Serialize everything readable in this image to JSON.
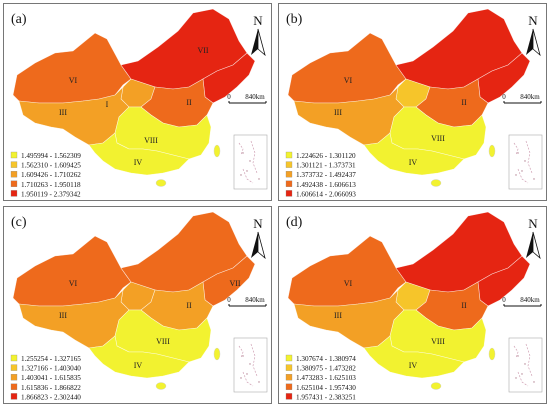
{
  "panels": [
    {
      "label": "(a)",
      "legend": [
        "1.495994 - 1.562309",
        "1.562310 - 1.609425",
        "1.609426 - 1.710262",
        "1.710263 - 1.950118",
        "1.950119 - 2.379342"
      ],
      "region_classes": {
        "I": 4,
        "II": 3,
        "III": 2,
        "IV": 0,
        "V": 2,
        "VI": 3,
        "VII": 4,
        "VIII": 0
      },
      "region_labels": [
        "I",
        "II",
        "III",
        "IV",
        "VI",
        "VII",
        "VIII"
      ]
    },
    {
      "label": "(b)",
      "legend": [
        "1.224626 - 1.301120",
        "1.301121 - 1.373731",
        "1.373732 - 1.492437",
        "1.492438 - 1.606613",
        "1.606614 - 2.066093"
      ],
      "region_classes": {
        "I": 4,
        "II": 3,
        "III": 2,
        "IV": 0,
        "V": 1,
        "VI": 3,
        "VII": 4,
        "VIII": 0
      },
      "region_labels": [
        "II",
        "III",
        "IV",
        "VI",
        "VIII"
      ]
    },
    {
      "label": "(c)",
      "legend": [
        "1.255254 - 1.327165",
        "1.327166 - 1.403040",
        "1.403041 - 1.615835",
        "1.615836 - 1.866822",
        "1.866823 - 2.302440"
      ],
      "region_classes": {
        "I": 3,
        "II": 2,
        "III": 2,
        "IV": 0,
        "V": 2,
        "VI": 3,
        "VII": 3,
        "VIII": 0
      },
      "region_labels": [
        "II",
        "III",
        "IV",
        "VI",
        "VII",
        "VIII"
      ]
    },
    {
      "label": "(d)",
      "legend": [
        "1.307674 - 1.380974",
        "1.380975 - 1.473282",
        "1.473283 - 1.625103",
        "1.625104 - 1.957430",
        "1.957431 - 2.383251"
      ],
      "region_classes": {
        "I": 4,
        "II": 3,
        "III": 2,
        "IV": 0,
        "V": 1,
        "VI": 3,
        "VII": 4,
        "VIII": 0
      },
      "region_labels": [
        "II",
        "III",
        "IV",
        "VI",
        "VIII"
      ]
    }
  ],
  "north_label": "N",
  "scale_start": "0",
  "scale_end": "840km",
  "class_colors": [
    "#f2f230",
    "#f6c52a",
    "#f3a025",
    "#ee6a1c",
    "#e52512"
  ],
  "border_color": "#9a9a9a"
}
